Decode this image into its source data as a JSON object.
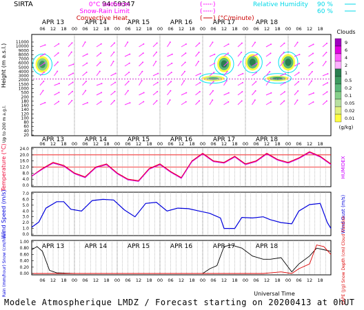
{
  "header": {
    "station": "SIRTA",
    "code": "94.69347",
    "legend_left": [
      {
        "label": "0°C isotherm",
        "color": "#ff00ff"
      },
      {
        "label": "Snow-Rain Limit",
        "color": "#ff00ff"
      },
      {
        "label": "Convective Heat.",
        "color": "#cc0000",
        "unit": "(°C/minute)"
      }
    ],
    "legend_right": [
      {
        "label": "Relative Humidity",
        "value": "90 %",
        "color": "#00d8e8"
      },
      {
        "label": "",
        "value": "60 %",
        "color": "#00d8e8"
      }
    ]
  },
  "colors": {
    "temperature": "#ee0033",
    "humidex": "#cc00ff",
    "wind": "#0000dd",
    "rain": "#dd0000",
    "snow": "#000000",
    "wind_barb": "#ff33ff",
    "isotherm": "#cc33cc",
    "humidity": "#00e0f0",
    "threshold": "#ee0000"
  },
  "dates": [
    "APR 13",
    "APR 14",
    "APR 15",
    "APR 16",
    "APR 17",
    "APR 18"
  ],
  "hour_ticks": [
    "06",
    "12",
    "18",
    "00"
  ],
  "chart_data": [
    {
      "type": "heatmap",
      "name": "clouds",
      "ylabel": "Height (m a.s.l.)",
      "ylabel2": "Up to 200 m a.g.l.",
      "height_ticks": [
        "11000",
        "10000",
        "9000",
        "8000",
        "7000",
        "6000",
        "5000",
        "4000",
        "3000",
        "2000",
        "1500",
        "1000",
        "500",
        "200",
        "180",
        "160",
        "140",
        "120",
        "100",
        "80",
        "60",
        "40",
        "20"
      ],
      "colorbar": {
        "title": "Clouds",
        "unit": "(g/kg)",
        "levels": [
          "9",
          "6",
          "4",
          "2",
          "1",
          "0.5",
          "0.2",
          "0.1",
          "0.05",
          "0.02",
          "0.01"
        ],
        "colors": [
          "#a000c0",
          "#e000e0",
          "#ff60ff",
          "#ffb0ff",
          "#2a7f4f",
          "#3c9a5f",
          "#5ab87a",
          "#86d08a",
          "#b8e0a0",
          "#e0f080",
          "#ffff40"
        ]
      },
      "cloud_patches": [
        {
          "t": 6,
          "h": 5700,
          "level": 0.5
        },
        {
          "t": 102,
          "h": 2400,
          "level": 0.2
        },
        {
          "t": 108,
          "h": 5800,
          "level": 1
        },
        {
          "t": 124,
          "h": 6200,
          "level": 1
        },
        {
          "t": 138,
          "h": 2400,
          "level": 0.5
        },
        {
          "t": 144,
          "h": 6200,
          "level": 1
        }
      ],
      "isotherm_0C_m": 2250
    },
    {
      "type": "line",
      "name": "temperature",
      "ylabel": "Temperature (°C)",
      "ylabel2": "HUMIDEX",
      "yticks": [
        "24.0",
        "20.0",
        "16.0",
        "12.0",
        "8.0",
        "4.0",
        "0.0"
      ],
      "ylim": [
        0,
        24
      ],
      "thresholds": [
        20,
        12
      ],
      "x_hours": [
        0,
        6,
        12,
        18,
        24,
        30,
        36,
        42,
        48,
        54,
        60,
        66,
        72,
        78,
        84,
        90,
        96,
        102,
        108,
        114,
        120,
        126,
        132,
        138,
        144,
        150,
        156,
        162,
        168
      ],
      "series": [
        {
          "name": "Temperature",
          "values": [
            6,
            11,
            15,
            13,
            8,
            5.5,
            12,
            14,
            8,
            4,
            3,
            11,
            14,
            9,
            5,
            16,
            21,
            16,
            15,
            19,
            14,
            16,
            21,
            17,
            15,
            18,
            22,
            19,
            14
          ]
        },
        {
          "name": "HUMIDEX",
          "values": [
            6,
            10.5,
            14.5,
            12.5,
            7.5,
            5,
            11.5,
            13.5,
            7.5,
            3.5,
            2.5,
            10.5,
            13.5,
            8.5,
            4.5,
            15.5,
            20.5,
            15.5,
            14.5,
            18.5,
            13.5,
            15.5,
            20.5,
            16.5,
            14.5,
            17.5,
            21.5,
            18.5,
            13.5
          ]
        }
      ]
    },
    {
      "type": "line",
      "name": "wind",
      "ylabel": "Wind Speed (m/s)",
      "ylabel2": "Wind Gust (m/s)",
      "yticks": [
        "7.0",
        "6.0",
        "5.0",
        "4.0",
        "3.0",
        "2.0",
        "1.0",
        "0.0"
      ],
      "ylim": [
        0,
        7
      ],
      "x_hours": [
        0,
        4,
        8,
        14,
        18,
        22,
        28,
        34,
        40,
        46,
        52,
        58,
        64,
        70,
        76,
        82,
        88,
        94,
        100,
        106,
        108,
        114,
        118,
        124,
        130,
        134,
        140,
        146,
        150,
        156,
        162,
        166,
        168
      ],
      "series": [
        {
          "name": "Wind Speed",
          "values": [
            1.2,
            2.1,
            4.5,
            5.6,
            5.6,
            4.3,
            4.0,
            5.8,
            6.0,
            5.9,
            4.2,
            3.0,
            5.3,
            5.5,
            4.0,
            4.5,
            4.4,
            4.0,
            3.6,
            2.8,
            1.0,
            1.0,
            2.9,
            2.8,
            3.0,
            2.5,
            2.0,
            1.8,
            4.0,
            5.1,
            5.3,
            2.0,
            1.0
          ]
        }
      ]
    },
    {
      "type": "line",
      "name": "precipitation",
      "ylabel": "Rain (mm/hour) Snow (cm/hour)",
      "ylabel2": "CAPE (J/g) Snow Depth (cm) Cloud Fraction",
      "yticks": [
        "1.00",
        "0.80",
        "0.60",
        "0.40",
        "0.20",
        "0.00"
      ],
      "ylim": [
        0,
        1
      ],
      "x_hours": [
        0,
        3,
        6,
        10,
        14,
        24,
        60,
        96,
        100,
        104,
        108,
        112,
        118,
        124,
        130,
        134,
        140,
        146,
        150,
        156,
        160,
        164,
        168
      ],
      "series": [
        {
          "name": "Cloud Fraction",
          "values": [
            0.75,
            0.85,
            0.7,
            0.1,
            0.02,
            0,
            0,
            0,
            0.15,
            0.25,
            0.85,
            0.9,
            0.8,
            0.55,
            0.45,
            0.45,
            0.5,
            0.05,
            0.3,
            0.55,
            0.8,
            0.75,
            0.7
          ]
        },
        {
          "name": "Rain",
          "values": [
            0,
            0,
            0,
            0,
            0,
            0,
            0,
            0,
            0,
            0,
            0,
            0,
            0,
            0,
            0,
            0.02,
            0.05,
            0,
            0.15,
            0.3,
            0.9,
            0.85,
            0.6
          ]
        }
      ]
    }
  ],
  "xlabel": "Universal Time",
  "footer": "Modele Atmospherique LMDZ / Forecast starting on 20200413 at 0hUT"
}
